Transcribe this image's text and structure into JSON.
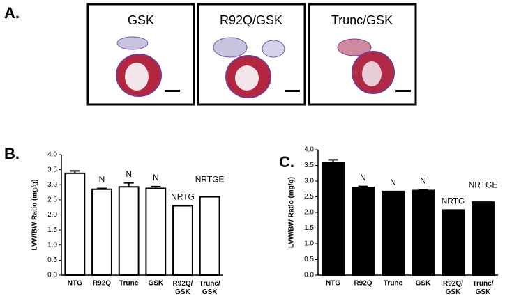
{
  "panels": {
    "a": {
      "label": "A.",
      "images": [
        "GSK",
        "R92Q/GSK",
        "Trunc/GSK"
      ]
    }
  },
  "chart_data": [
    {
      "type": "bar",
      "panel_label": "B.",
      "ylabel": "LVW/BW Ratio (mg/g)",
      "color": "#ffffff",
      "categories": [
        "NTG",
        "R92Q",
        "Trunc",
        "GSK",
        "R92Q/\nGSK",
        "Trunc/\nGSK"
      ],
      "values": [
        3.38,
        2.85,
        2.93,
        2.88,
        2.3,
        2.6
      ],
      "errors": [
        0.08,
        0.03,
        0.13,
        0.06,
        null,
        null
      ],
      "annotations": [
        null,
        "N",
        "N",
        "N",
        "NRTG",
        "NRTGE"
      ],
      "ylim": [
        0,
        4
      ],
      "yticks": [
        {
          "value": 0,
          "label": "0.0"
        },
        0.5,
        {
          "value": 1,
          "label": "1.0"
        },
        1.5,
        {
          "value": 2,
          "label": "2.0"
        },
        2.5,
        {
          "value": 3,
          "label": "3.0"
        },
        3.5,
        {
          "value": 4,
          "label": "4.0"
        }
      ]
    },
    {
      "type": "bar",
      "panel_label": "C.",
      "ylabel": "LVW/BW Ratio (mg/g)",
      "color": "#000000",
      "categories": [
        "NTG",
        "R92Q",
        "Trunc",
        "GSK",
        "R92Q/\nGSK",
        "Trunc/\nGSK"
      ],
      "values": [
        3.6,
        2.8,
        2.67,
        2.7,
        2.08,
        2.33
      ],
      "errors": [
        0.08,
        0.03,
        null,
        0.03,
        null,
        null
      ],
      "annotations": [
        null,
        "N",
        "N",
        "N",
        "NRTG",
        "NRTGE"
      ],
      "ylim": [
        0,
        4
      ],
      "yticks": [
        {
          "value": 0,
          "label": "0.0"
        },
        0.5,
        {
          "value": 1,
          "label": "1.0"
        },
        1.5,
        {
          "value": 2,
          "label": "2.0"
        },
        2.5,
        {
          "value": 3,
          "label": "3.0"
        },
        3.5,
        {
          "value": 4,
          "label": "4.0"
        }
      ]
    }
  ]
}
